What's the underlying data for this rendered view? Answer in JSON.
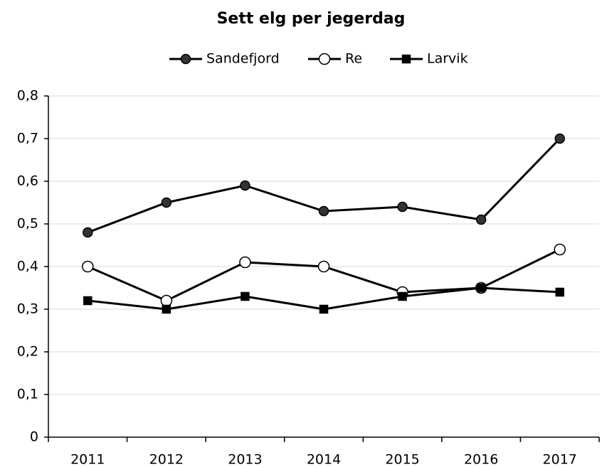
{
  "chart_data": {
    "type": "line",
    "title": "Sett elg per jegerdag",
    "categories": [
      "2011",
      "2012",
      "2013",
      "2014",
      "2015",
      "2016",
      "2017"
    ],
    "series": [
      {
        "name": "Sandefjord",
        "color": "#000000",
        "marker": "circle",
        "marker_fill": "#333333",
        "values": [
          0.48,
          0.55,
          0.59,
          0.53,
          0.54,
          0.51,
          0.7
        ]
      },
      {
        "name": "Re",
        "color": "#000000",
        "marker": "circle",
        "marker_fill": "#ffffff",
        "values": [
          0.4,
          0.32,
          0.41,
          0.4,
          0.34,
          0.35,
          0.44
        ]
      },
      {
        "name": "Larvik",
        "color": "#000000",
        "marker": "square",
        "marker_fill": "#000000",
        "values": [
          0.32,
          0.3,
          0.33,
          0.3,
          0.33,
          0.35,
          0.34
        ]
      }
    ],
    "ylim": [
      0,
      0.8
    ],
    "yticks": [
      0,
      {
        "value": 0.1,
        "label": "0,1"
      },
      {
        "value": 0.2,
        "label": "0,2"
      },
      {
        "value": 0.3,
        "label": "0,3"
      },
      {
        "value": 0.4,
        "label": "0,4"
      },
      {
        "value": 0.5,
        "label": "0,5"
      },
      {
        "value": 0.6,
        "label": "0,6"
      },
      {
        "value": 0.7,
        "label": "0,7"
      },
      {
        "value": 0.8,
        "label": "0,8"
      }
    ],
    "grid": true,
    "legend": "top"
  }
}
